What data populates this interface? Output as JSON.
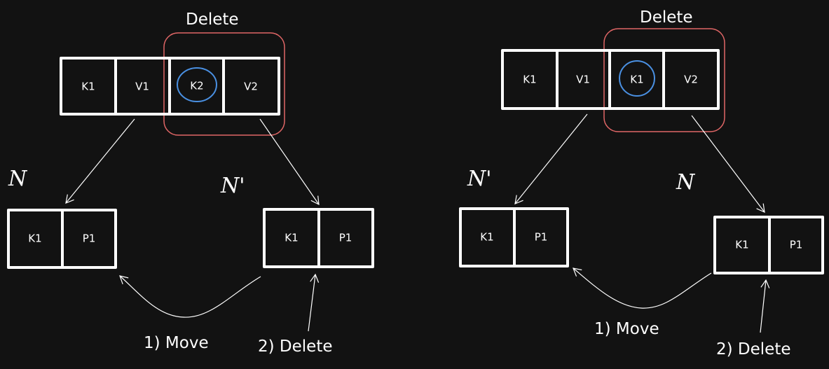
{
  "left": {
    "delete_label": "Delete",
    "top_node": [
      "K1",
      "V1",
      "K2",
      "V2"
    ],
    "left_node_label": "N",
    "right_node_label": "N'",
    "left_node": [
      "K1",
      "P1"
    ],
    "right_node": [
      "K1",
      "P1"
    ],
    "step1": "1) Move",
    "step2": "2) Delete"
  },
  "right": {
    "delete_label": "Delete",
    "top_node": [
      "K1",
      "V1",
      "K1",
      "V2"
    ],
    "left_node_label": "N'",
    "right_node_label": "N",
    "left_node": [
      "K1",
      "P1"
    ],
    "right_node": [
      "K1",
      "P1"
    ],
    "step1": "1) Move",
    "step2": "2) Delete"
  },
  "colors": {
    "background": "#121212",
    "highlight": "#e06666",
    "circle": "#4a90e2"
  }
}
